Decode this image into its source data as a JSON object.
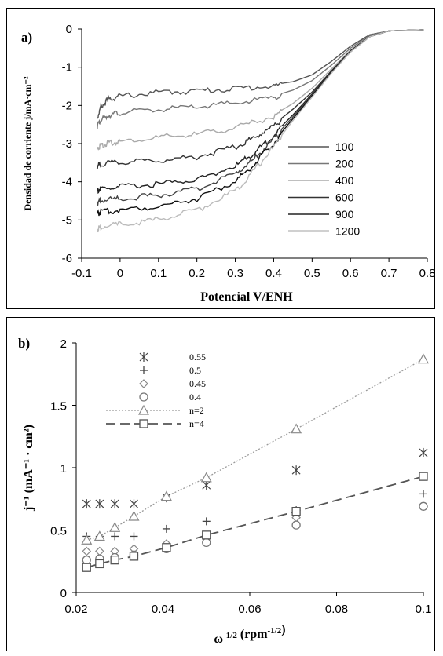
{
  "chart_data": [
    {
      "panel_label": "a)",
      "type": "line",
      "xlabel": "Potencial V/ENH",
      "ylabel": "Densidad de corriente j/mA·cm⁻²",
      "xlim": [
        -0.1,
        0.8
      ],
      "ylim": [
        -6,
        0
      ],
      "xticks": [
        "-0.1",
        "0",
        "0.1",
        "0.2",
        "0.3",
        "0.4",
        "0.5",
        "0.6",
        "0.7",
        "0.8"
      ],
      "yticks": [
        "0",
        "-1",
        "-2",
        "-3",
        "-4",
        "-5",
        "-6"
      ],
      "grid": false,
      "legend_position": "right",
      "series": [
        {
          "name": "100",
          "color": "#555555",
          "points": [
            [
              -0.06,
              -2.3
            ],
            [
              -0.05,
              -2.0
            ],
            [
              -0.03,
              -1.8
            ],
            [
              0.0,
              -1.72
            ],
            [
              0.1,
              -1.62
            ],
            [
              0.2,
              -1.58
            ],
            [
              0.3,
              -1.52
            ],
            [
              0.4,
              -1.45
            ],
            [
              0.45,
              -1.38
            ],
            [
              0.5,
              -1.2
            ],
            [
              0.55,
              -0.85
            ],
            [
              0.6,
              -0.45
            ],
            [
              0.65,
              -0.15
            ],
            [
              0.7,
              -0.05
            ],
            [
              0.79,
              -0.02
            ]
          ]
        },
        {
          "name": "200",
          "color": "#777777",
          "points": [
            [
              -0.06,
              -2.5
            ],
            [
              -0.05,
              -2.35
            ],
            [
              -0.03,
              -2.22
            ],
            [
              0.0,
              -2.15
            ],
            [
              0.1,
              -2.07
            ],
            [
              0.2,
              -2.0
            ],
            [
              0.3,
              -1.9
            ],
            [
              0.4,
              -1.75
            ],
            [
              0.45,
              -1.6
            ],
            [
              0.5,
              -1.35
            ],
            [
              0.55,
              -0.95
            ],
            [
              0.6,
              -0.5
            ],
            [
              0.65,
              -0.17
            ],
            [
              0.7,
              -0.05
            ],
            [
              0.79,
              -0.02
            ]
          ]
        },
        {
          "name": "400",
          "color": "#aaaaaa",
          "points": [
            [
              -0.06,
              -3.1
            ],
            [
              -0.05,
              -3.0
            ],
            [
              -0.03,
              -2.95
            ],
            [
              0.0,
              -2.9
            ],
            [
              0.1,
              -2.8
            ],
            [
              0.2,
              -2.72
            ],
            [
              0.3,
              -2.55
            ],
            [
              0.4,
              -2.25
            ],
            [
              0.45,
              -1.95
            ],
            [
              0.5,
              -1.55
            ],
            [
              0.55,
              -1.05
            ],
            [
              0.6,
              -0.55
            ],
            [
              0.65,
              -0.18
            ],
            [
              0.7,
              -0.05
            ],
            [
              0.79,
              -0.02
            ]
          ]
        },
        {
          "name": "600",
          "color": "#333333",
          "points": [
            [
              -0.06,
              -3.55
            ],
            [
              -0.05,
              -3.5
            ],
            [
              0.0,
              -3.45
            ],
            [
              0.1,
              -3.4
            ],
            [
              0.2,
              -3.3
            ],
            [
              0.3,
              -3.05
            ],
            [
              0.35,
              -2.8
            ],
            [
              0.4,
              -2.5
            ],
            [
              0.45,
              -2.1
            ],
            [
              0.5,
              -1.65
            ],
            [
              0.55,
              -1.1
            ],
            [
              0.6,
              -0.57
            ],
            [
              0.65,
              -0.19
            ],
            [
              0.7,
              -0.05
            ],
            [
              0.79,
              -0.02
            ]
          ]
        },
        {
          "name": "900",
          "color": "#222222",
          "points": [
            [
              -0.06,
              -4.2
            ],
            [
              -0.05,
              -4.15
            ],
            [
              0.0,
              -4.1
            ],
            [
              0.1,
              -4.02
            ],
            [
              0.2,
              -3.9
            ],
            [
              0.3,
              -3.55
            ],
            [
              0.35,
              -3.2
            ],
            [
              0.4,
              -2.75
            ],
            [
              0.45,
              -2.25
            ],
            [
              0.5,
              -1.7
            ],
            [
              0.55,
              -1.12
            ],
            [
              0.6,
              -0.58
            ],
            [
              0.65,
              -0.2
            ],
            [
              0.7,
              -0.05
            ],
            [
              0.79,
              -0.02
            ]
          ]
        },
        {
          "name": "1200",
          "color": "#444444",
          "points": [
            [
              -0.06,
              -4.5
            ],
            [
              -0.05,
              -4.45
            ],
            [
              0.0,
              -4.4
            ],
            [
              0.1,
              -4.32
            ],
            [
              0.2,
              -4.15
            ],
            [
              0.3,
              -3.75
            ],
            [
              0.35,
              -3.35
            ],
            [
              0.4,
              -2.85
            ],
            [
              0.45,
              -2.3
            ],
            [
              0.5,
              -1.72
            ],
            [
              0.55,
              -1.14
            ],
            [
              0.6,
              -0.59
            ],
            [
              0.65,
              -0.2
            ],
            [
              0.7,
              -0.05
            ],
            [
              0.79,
              -0.02
            ]
          ]
        },
        {
          "name": "",
          "color": "#111111",
          "points": [
            [
              -0.06,
              -4.8
            ],
            [
              -0.05,
              -4.75
            ],
            [
              0.0,
              -4.7
            ],
            [
              0.1,
              -4.6
            ],
            [
              0.2,
              -4.4
            ],
            [
              0.3,
              -3.95
            ],
            [
              0.35,
              -3.5
            ],
            [
              0.4,
              -2.95
            ],
            [
              0.45,
              -2.35
            ],
            [
              0.5,
              -1.75
            ],
            [
              0.55,
              -1.15
            ],
            [
              0.6,
              -0.6
            ],
            [
              0.65,
              -0.2
            ],
            [
              0.7,
              -0.05
            ],
            [
              0.79,
              -0.02
            ]
          ]
        },
        {
          "name": "",
          "color": "#bbbbbb",
          "points": [
            [
              -0.06,
              -5.2
            ],
            [
              -0.05,
              -5.15
            ],
            [
              0.0,
              -5.08
            ],
            [
              0.1,
              -4.95
            ],
            [
              0.2,
              -4.7
            ],
            [
              0.3,
              -4.2
            ],
            [
              0.35,
              -3.65
            ],
            [
              0.4,
              -3.05
            ],
            [
              0.45,
              -2.4
            ],
            [
              0.5,
              -1.78
            ],
            [
              0.55,
              -1.16
            ],
            [
              0.6,
              -0.6
            ],
            [
              0.65,
              -0.2
            ],
            [
              0.7,
              -0.05
            ],
            [
              0.79,
              -0.02
            ]
          ]
        }
      ]
    },
    {
      "panel_label": "b)",
      "type": "scatter",
      "xlabel": "ω⁻¹ᐟ² (rpm⁻¹ᐟ²)",
      "xlabel_main": "ω",
      "xlabel_sup": "-1/2",
      "xlabel_mid": " (rpm",
      "xlabel_sup2": "-1/2",
      "xlabel_end": ")",
      "ylabel": "j⁻¹ (mA⁻¹ · cm²)",
      "xlim": [
        0.02,
        0.1
      ],
      "ylim": [
        0,
        2
      ],
      "xticks": [
        "0.02",
        "0.04",
        "0.06",
        "0.08",
        "0.1"
      ],
      "yticks": [
        "0",
        "0.5",
        "1",
        "1.5",
        "2"
      ],
      "grid": false,
      "legend_position": "top-left",
      "series": [
        {
          "name": "0.55",
          "marker": "asterisk",
          "x": [
            0.0224,
            0.0254,
            0.0289,
            0.0333,
            0.0408,
            0.05,
            0.0707,
            0.1
          ],
          "y": [
            0.71,
            0.71,
            0.71,
            0.71,
            0.76,
            0.86,
            0.98,
            1.12
          ]
        },
        {
          "name": "0.5",
          "marker": "plus",
          "x": [
            0.0224,
            0.0254,
            0.0289,
            0.0333,
            0.0408,
            0.05,
            0.0707,
            0.1
          ],
          "y": [
            0.45,
            0.45,
            0.45,
            0.45,
            0.51,
            0.57,
            0.66,
            0.79
          ]
        },
        {
          "name": "0.45",
          "marker": "diamond",
          "x": [
            0.0224,
            0.0254,
            0.0289,
            0.0333,
            0.0408,
            0.05,
            0.0707,
            0.1
          ],
          "y": [
            0.33,
            0.33,
            0.33,
            0.35,
            0.39,
            0.44,
            0.6,
            0.69
          ]
        },
        {
          "name": "0.4",
          "marker": "circle",
          "x": [
            0.0224,
            0.0254,
            0.0289,
            0.0333,
            0.0408,
            0.05,
            0.0707,
            0.1
          ],
          "y": [
            0.26,
            0.27,
            0.28,
            0.3,
            0.35,
            0.4,
            0.54,
            0.69
          ]
        },
        {
          "name": "n=2",
          "marker": "triangle",
          "line": "dotted",
          "color": "#999999",
          "x": [
            0.0224,
            0.0254,
            0.0289,
            0.0333,
            0.0408,
            0.05,
            0.0707,
            0.1
          ],
          "y": [
            0.42,
            0.45,
            0.52,
            0.61,
            0.77,
            0.92,
            1.31,
            1.87
          ]
        },
        {
          "name": "n=4",
          "marker": "square",
          "line": "dashed",
          "color": "#555555",
          "x": [
            0.0224,
            0.0254,
            0.0289,
            0.0333,
            0.0408,
            0.05,
            0.0707,
            0.1
          ],
          "y": [
            0.2,
            0.23,
            0.26,
            0.29,
            0.36,
            0.46,
            0.65,
            0.93
          ]
        }
      ]
    }
  ]
}
